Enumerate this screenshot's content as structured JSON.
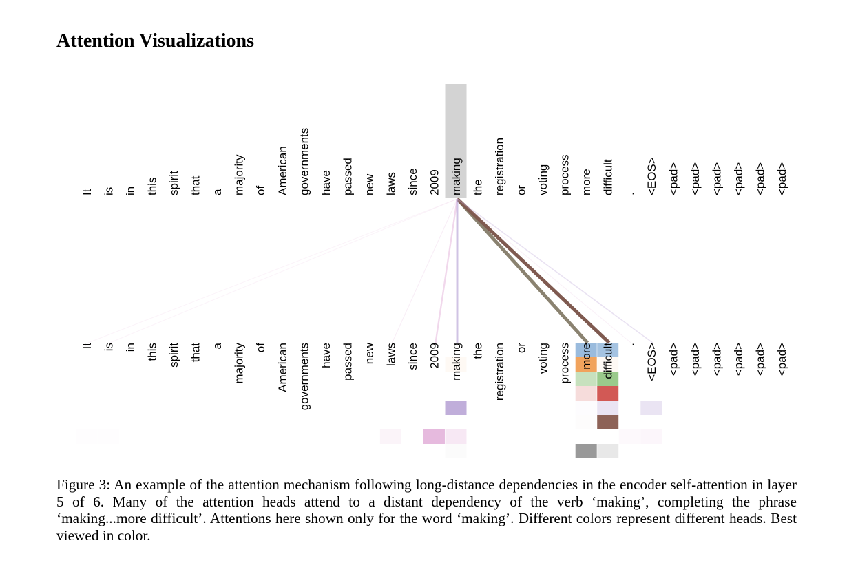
{
  "title": "Attention Visualizations",
  "caption": "Figure 3: An example of the attention mechanism following long-distance dependencies in the encoder self-attention in layer 5 of 6. Many of the attention heads attend to a distant dependency of the verb ‘making’, completing the phrase ‘making...more difficult’. Attentions here shown only for the word ‘making’. Different colors represent different heads. Best viewed in color.",
  "chart_data": {
    "type": "heatmap",
    "tokens": [
      "It",
      "is",
      "in",
      "this",
      "spirit",
      "that",
      "a",
      "majority",
      "of",
      "American",
      "governments",
      "have",
      "passed",
      "new",
      "laws",
      "since",
      "2009",
      "making",
      "the",
      "registration",
      "or",
      "voting",
      "process",
      "more",
      "difficult",
      ".",
      "<EOS>",
      "<pad>",
      "<pad>",
      "<pad>",
      "<pad>",
      "<pad>",
      "<pad>"
    ],
    "query_token": "making",
    "highlight_color": "#d3d3d3",
    "heads": [
      {
        "color": "#8fb4d9",
        "weights": {
          "more": 0.9,
          "difficult": 0.8
        }
      },
      {
        "color": "#f0994a",
        "weights": {
          "making": 0.06,
          "more": 0.9,
          "difficult": 0.06
        }
      },
      {
        "color": "#8fc47e",
        "weights": {
          "more": 0.5,
          "difficult": 0.9
        }
      },
      {
        "color": "#d0504c",
        "weights": {
          "more": 0.2,
          "difficult": 0.95
        }
      },
      {
        "color": "#b9a5d6",
        "weights": {
          "making": 0.9,
          "more": 0.03,
          "difficult": 0.3,
          "<EOS>": 0.3
        }
      },
      {
        "color": "#875a4e",
        "weights": {
          "more": 0.02,
          "difficult": 0.95
        }
      },
      {
        "color": "#e3b2da",
        "weights": {
          "It": 0.02,
          "is": 0.02,
          "laws": 0.15,
          "2009": 0.9,
          "making": 0.3,
          ".": 0.08,
          "<EOS>": 0.12
        }
      },
      {
        "color": "#8e8e8e",
        "weights": {
          "making": 0.04,
          "more": 0.9,
          "difficult": 0.2
        }
      }
    ]
  }
}
